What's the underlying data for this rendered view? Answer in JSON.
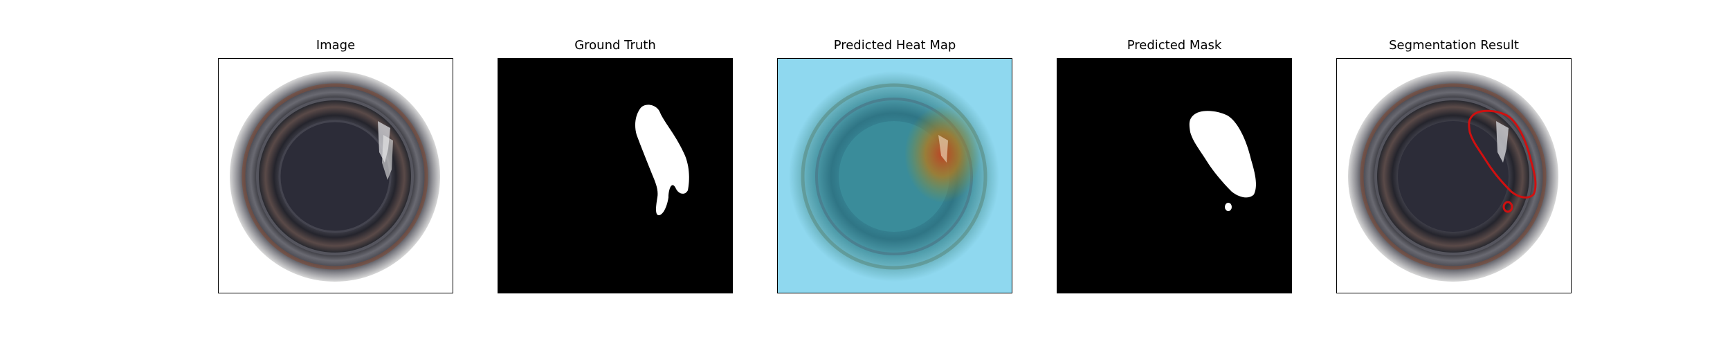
{
  "figure": {
    "panels": [
      {
        "title": "Image",
        "content": "bottle-image"
      },
      {
        "title": "Ground Truth",
        "content": "ground-truth-mask"
      },
      {
        "title": "Predicted Heat Map",
        "content": "heatmap-overlay"
      },
      {
        "title": "Predicted Mask",
        "content": "predicted-mask"
      },
      {
        "title": "Segmentation Result",
        "content": "segmentation-overlay"
      }
    ]
  },
  "colors": {
    "background": "#ffffff",
    "mask_background": "#000000",
    "mask_foreground": "#ffffff",
    "heatmap_cold": "#8fd8ef",
    "heatmap_hot": "#c04020",
    "contour": "#d01010"
  }
}
